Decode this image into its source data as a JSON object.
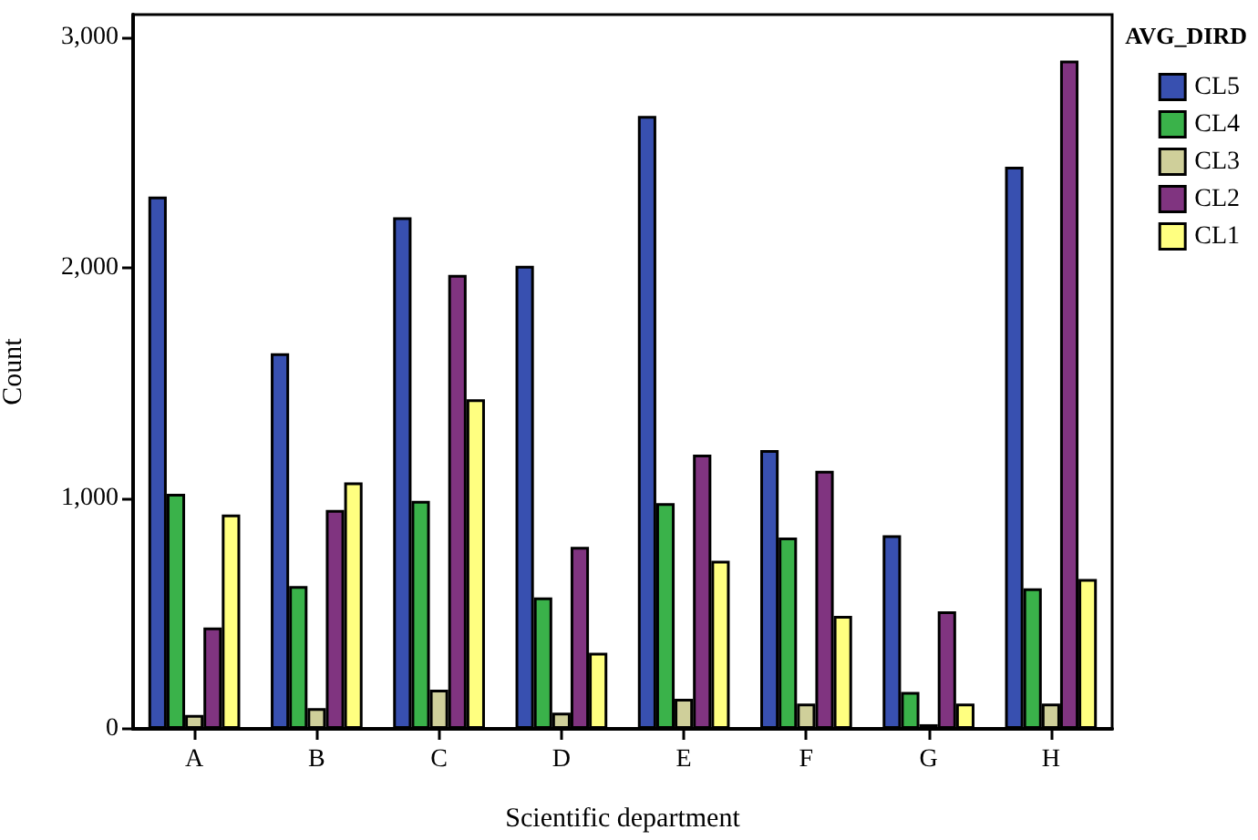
{
  "chart_data": {
    "type": "bar",
    "xlabel": "Scientific department",
    "ylabel": "Count",
    "legend_title": "AVG_DIRD",
    "legend": "top right",
    "grid": false,
    "categories": [
      "A",
      "B",
      "C",
      "D",
      "E",
      "F",
      "G",
      "H"
    ],
    "ylim": [
      0,
      3100
    ],
    "yticks": [
      0,
      {
        "value": 1000,
        "label": "1,000"
      },
      {
        "value": 2000,
        "label": "2,000"
      },
      {
        "value": 3000,
        "label": "3,000"
      }
    ],
    "series": [
      {
        "name": "CL5",
        "color": "#3850b0",
        "values": [
          2310,
          1630,
          2220,
          2010,
          2660,
          1210,
          840,
          2440
        ]
      },
      {
        "name": "CL4",
        "color": "#3ab24a",
        "values": [
          1020,
          620,
          990,
          570,
          980,
          830,
          160,
          610
        ]
      },
      {
        "name": "CL3",
        "color": "#cfcf9a",
        "values": [
          60,
          90,
          170,
          70,
          130,
          110,
          20,
          110
        ]
      },
      {
        "name": "CL2",
        "color": "#803480",
        "values": [
          440,
          950,
          1970,
          790,
          1190,
          1120,
          510,
          2900
        ]
      },
      {
        "name": "CL1",
        "color": "#ffff80",
        "values": [
          930,
          1070,
          1430,
          330,
          730,
          490,
          110,
          650
        ]
      }
    ]
  }
}
